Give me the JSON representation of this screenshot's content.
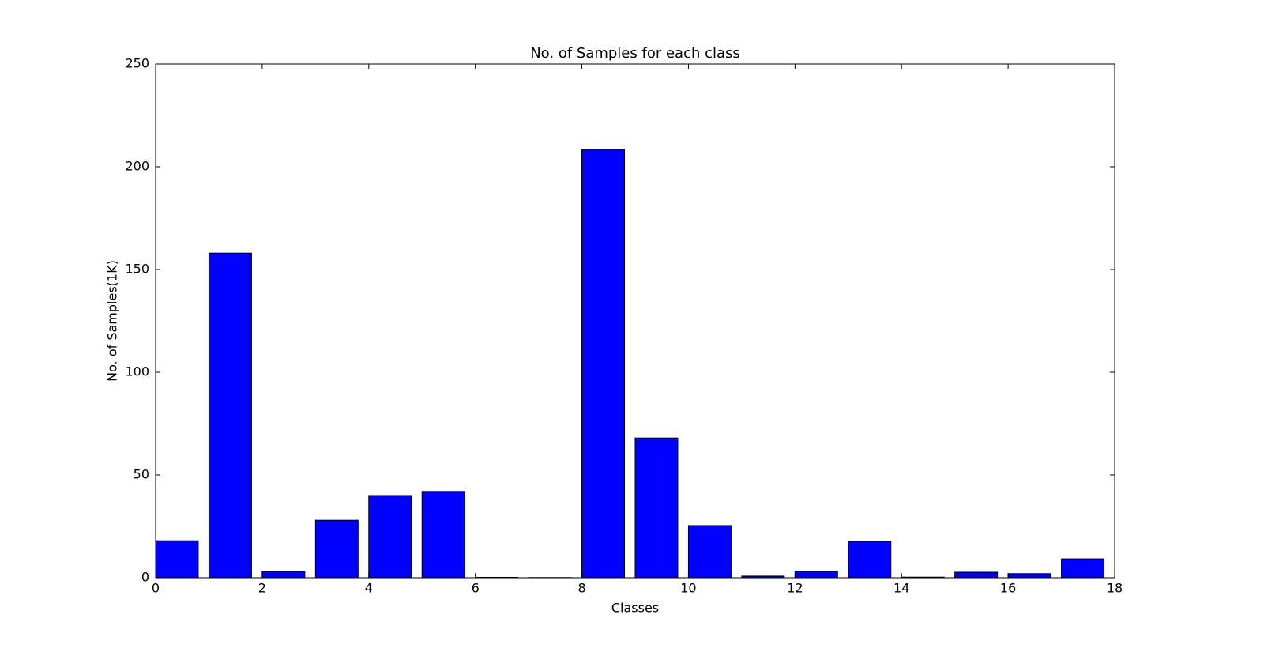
{
  "chart_data": {
    "type": "bar",
    "title": "No. of Samples for each class",
    "x_label": "Classes",
    "y_label": "No. of Samples(1K)",
    "x": [
      0,
      1,
      2,
      3,
      4,
      5,
      6,
      7,
      8,
      9,
      10,
      11,
      12,
      13,
      14,
      15,
      16,
      17
    ],
    "values": [
      18,
      158,
      3,
      28,
      40,
      42,
      0.2,
      0.1,
      208.5,
      68,
      25.4,
      0.8,
      3,
      17.7,
      0.3,
      2.7,
      2,
      9.2
    ],
    "color": "#0000ff",
    "xlim": [
      0,
      18
    ],
    "xticks": [
      0,
      2,
      4,
      6,
      8,
      10,
      12,
      14,
      16,
      18
    ],
    "ylim": [
      0,
      250
    ],
    "yticks": [
      0,
      50,
      100,
      150,
      200,
      250
    ],
    "grid": false
  }
}
